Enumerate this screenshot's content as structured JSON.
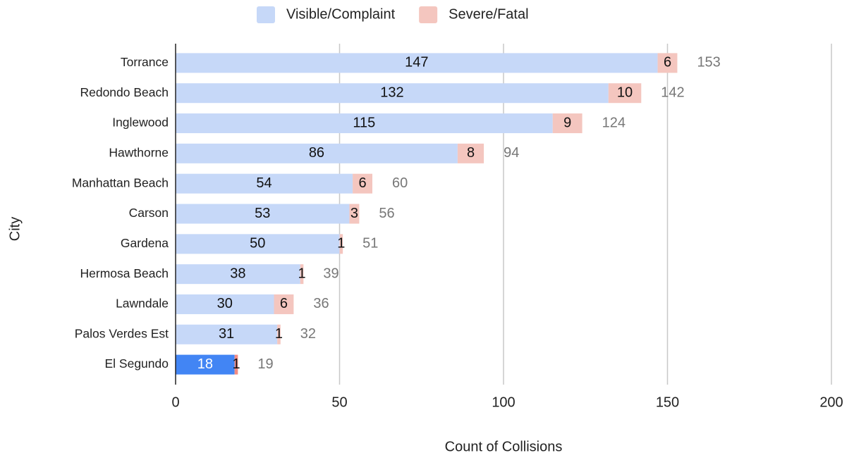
{
  "chart_data": {
    "type": "stacked-bar-horizontal",
    "categories": [
      "Torrance",
      "Redondo Beach",
      "Inglewood",
      "Hawthorne",
      "Manhattan Beach",
      "Carson",
      "Gardena",
      "Hermosa Beach",
      "Lawndale",
      "Palos Verdes Est",
      "El Segundo"
    ],
    "series": [
      {
        "name": "Visible/Complaint",
        "color": "#c6d8f8",
        "values": [
          147,
          132,
          115,
          86,
          54,
          53,
          50,
          38,
          30,
          31,
          18
        ]
      },
      {
        "name": "Severe/Fatal",
        "color": "#f4c6bf",
        "values": [
          6,
          10,
          9,
          8,
          6,
          3,
          1,
          1,
          6,
          1,
          1
        ]
      }
    ],
    "totals": [
      153,
      142,
      124,
      94,
      60,
      56,
      51,
      39,
      36,
      32,
      19
    ],
    "highlight": "El Segundo",
    "highlight_colors": [
      "#4285f4",
      "#f28b82"
    ],
    "xlim": [
      0,
      200
    ],
    "xticks": [
      0,
      50,
      100,
      150,
      200
    ],
    "grid": true,
    "xlabel": "Count of Collisions",
    "ylabel": "City",
    "legend": "top"
  }
}
